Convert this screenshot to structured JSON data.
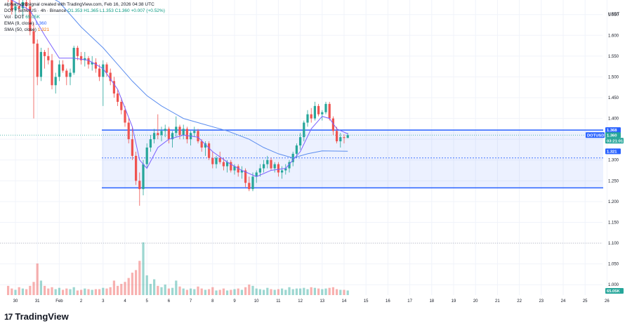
{
  "header": {
    "author_line": "alphacryptosignal created with TradingView.com, Feb 16, 2026 04:38 UTC",
    "symbol": "DOT / TetherUS · 4h · Binance",
    "ohlc": "O1.353  H1.365  L1.353  C1.360  +0.007 (+0.52%)",
    "vol_label": "Vol · DOT",
    "vol_value": "65.05K",
    "ema_label": "EMA (9, close)",
    "ema_value": "1.360",
    "sma_label": "SMA (50, close)",
    "sma_value": "1.321"
  },
  "brand": {
    "logo_text": "17",
    "name": "TradingView"
  },
  "price_axis": {
    "currency": "USDT",
    "ticks": [
      "1.650",
      "1.600",
      "1.550",
      "1.500",
      "1.450",
      "1.400",
      "1.350",
      "1.300",
      "1.250",
      "1.200",
      "1.150",
      "1.100",
      "1.050",
      "1.000"
    ]
  },
  "price_tags": {
    "symbol_tag": "DOTUSDT",
    "high_tag": "1.368",
    "last_price": "1.360",
    "countdown": "03:21:01",
    "sma_tag": "1.321",
    "volume_tag": "65.05K"
  },
  "colors": {
    "up": "#26a69a",
    "down": "#ef5350",
    "ema": "#7b61ff",
    "sma": "#5b8def",
    "box": "#2962ff"
  },
  "chart_data": {
    "type": "candlestick",
    "x_tick_labels": [
      "30",
      "31",
      "Feb",
      "2",
      "3",
      "4",
      "5",
      "6",
      "7",
      "8",
      "9",
      "10",
      "11",
      "12",
      "13",
      "14",
      "15",
      "16",
      "17",
      "18",
      "19",
      "20",
      "21",
      "22",
      "23",
      "24",
      "25",
      "26"
    ],
    "x_tick_dates": [
      "2026-01-30",
      "2026-01-31",
      "2026-02-01",
      "2026-02-02",
      "2026-02-03",
      "2026-02-04",
      "2026-02-05",
      "2026-02-06",
      "2026-02-07",
      "2026-02-08",
      "2026-02-09",
      "2026-02-10",
      "2026-02-11",
      "2026-02-12",
      "2026-02-13",
      "2026-02-14",
      "2026-02-15",
      "2026-02-16",
      "2026-02-17",
      "2026-02-18",
      "2026-02-19",
      "2026-02-20",
      "2026-02-21",
      "2026-02-22",
      "2026-02-23",
      "2026-02-24",
      "2026-02-25",
      "2026-02-26"
    ],
    "ylim": [
      0.975,
      1.685
    ],
    "candle_interval": "4h",
    "first_candle_time": "2026-01-29 16:00",
    "candles": [
      [
        1.7,
        1.72,
        1.68,
        1.69
      ],
      [
        1.69,
        1.7,
        1.65,
        1.66
      ],
      [
        1.66,
        1.68,
        1.64,
        1.67
      ],
      [
        1.67,
        1.69,
        1.655,
        1.665
      ],
      [
        1.665,
        1.69,
        1.64,
        1.68
      ],
      [
        1.68,
        1.7,
        1.66,
        1.67
      ],
      [
        1.67,
        1.69,
        1.6,
        1.61
      ],
      [
        1.61,
        1.63,
        1.4,
        1.58
      ],
      [
        1.58,
        1.59,
        1.48,
        1.5
      ],
      [
        1.5,
        1.57,
        1.49,
        1.56
      ],
      [
        1.56,
        1.565,
        1.52,
        1.55
      ],
      [
        1.55,
        1.57,
        1.53,
        1.54
      ],
      [
        1.54,
        1.555,
        1.47,
        1.48
      ],
      [
        1.48,
        1.51,
        1.46,
        1.5
      ],
      [
        1.5,
        1.54,
        1.49,
        1.53
      ],
      [
        1.53,
        1.54,
        1.51,
        1.515
      ],
      [
        1.515,
        1.52,
        1.48,
        1.5
      ],
      [
        1.5,
        1.52,
        1.48,
        1.51
      ],
      [
        1.51,
        1.575,
        1.505,
        1.57
      ],
      [
        1.57,
        1.575,
        1.54,
        1.55
      ],
      [
        1.55,
        1.56,
        1.53,
        1.54
      ],
      [
        1.54,
        1.56,
        1.525,
        1.545
      ],
      [
        1.545,
        1.55,
        1.52,
        1.53
      ],
      [
        1.53,
        1.55,
        1.515,
        1.535
      ],
      [
        1.535,
        1.545,
        1.51,
        1.52
      ],
      [
        1.52,
        1.53,
        1.49,
        1.5
      ],
      [
        1.5,
        1.54,
        1.43,
        1.53
      ],
      [
        1.53,
        1.535,
        1.5,
        1.51
      ],
      [
        1.51,
        1.52,
        1.48,
        1.49
      ],
      [
        1.49,
        1.5,
        1.45,
        1.46
      ],
      [
        1.46,
        1.47,
        1.43,
        1.44
      ],
      [
        1.44,
        1.45,
        1.41,
        1.42
      ],
      [
        1.42,
        1.43,
        1.38,
        1.39
      ],
      [
        1.39,
        1.4,
        1.34,
        1.35
      ],
      [
        1.35,
        1.38,
        1.3,
        1.31
      ],
      [
        1.31,
        1.32,
        1.24,
        1.25
      ],
      [
        1.25,
        1.27,
        1.19,
        1.23
      ],
      [
        1.23,
        1.3,
        1.215,
        1.29
      ],
      [
        1.29,
        1.34,
        1.28,
        1.33
      ],
      [
        1.33,
        1.36,
        1.32,
        1.35
      ],
      [
        1.35,
        1.375,
        1.34,
        1.365
      ],
      [
        1.365,
        1.41,
        1.35,
        1.36
      ],
      [
        1.36,
        1.38,
        1.345,
        1.37
      ],
      [
        1.37,
        1.385,
        1.355,
        1.375
      ],
      [
        1.375,
        1.38,
        1.34,
        1.35
      ],
      [
        1.35,
        1.37,
        1.33,
        1.365
      ],
      [
        1.365,
        1.405,
        1.355,
        1.38
      ],
      [
        1.38,
        1.385,
        1.35,
        1.36
      ],
      [
        1.36,
        1.385,
        1.35,
        1.375
      ],
      [
        1.375,
        1.38,
        1.34,
        1.35
      ],
      [
        1.35,
        1.37,
        1.335,
        1.365
      ],
      [
        1.365,
        1.38,
        1.355,
        1.37
      ],
      [
        1.37,
        1.375,
        1.34,
        1.345
      ],
      [
        1.345,
        1.35,
        1.32,
        1.33
      ],
      [
        1.33,
        1.345,
        1.31,
        1.34
      ],
      [
        1.34,
        1.345,
        1.3,
        1.305
      ],
      [
        1.305,
        1.32,
        1.28,
        1.29
      ],
      [
        1.29,
        1.31,
        1.28,
        1.305
      ],
      [
        1.305,
        1.32,
        1.29,
        1.295
      ],
      [
        1.295,
        1.305,
        1.275,
        1.285
      ],
      [
        1.285,
        1.3,
        1.27,
        1.295
      ],
      [
        1.295,
        1.3,
        1.27,
        1.275
      ],
      [
        1.275,
        1.29,
        1.265,
        1.285
      ],
      [
        1.285,
        1.29,
        1.26,
        1.27
      ],
      [
        1.27,
        1.285,
        1.255,
        1.275
      ],
      [
        1.275,
        1.28,
        1.235,
        1.245
      ],
      [
        1.245,
        1.26,
        1.225,
        1.23
      ],
      [
        1.23,
        1.27,
        1.225,
        1.26
      ],
      [
        1.26,
        1.275,
        1.245,
        1.27
      ],
      [
        1.27,
        1.29,
        1.26,
        1.28
      ],
      [
        1.28,
        1.3,
        1.27,
        1.29
      ],
      [
        1.29,
        1.31,
        1.28,
        1.3
      ],
      [
        1.3,
        1.305,
        1.275,
        1.28
      ],
      [
        1.28,
        1.295,
        1.27,
        1.29
      ],
      [
        1.29,
        1.295,
        1.26,
        1.27
      ],
      [
        1.27,
        1.285,
        1.255,
        1.275
      ],
      [
        1.275,
        1.29,
        1.265,
        1.28
      ],
      [
        1.28,
        1.3,
        1.27,
        1.295
      ],
      [
        1.295,
        1.32,
        1.285,
        1.315
      ],
      [
        1.315,
        1.34,
        1.305,
        1.335
      ],
      [
        1.335,
        1.365,
        1.325,
        1.355
      ],
      [
        1.355,
        1.395,
        1.345,
        1.39
      ],
      [
        1.39,
        1.42,
        1.38,
        1.41
      ],
      [
        1.41,
        1.425,
        1.39,
        1.4
      ],
      [
        1.4,
        1.44,
        1.395,
        1.43
      ],
      [
        1.43,
        1.435,
        1.405,
        1.41
      ],
      [
        1.41,
        1.42,
        1.395,
        1.415
      ],
      [
        1.415,
        1.44,
        1.41,
        1.435
      ],
      [
        1.435,
        1.44,
        1.395,
        1.4
      ],
      [
        1.4,
        1.405,
        1.36,
        1.37
      ],
      [
        1.37,
        1.38,
        1.34,
        1.345
      ],
      [
        1.345,
        1.365,
        1.33,
        1.355
      ],
      [
        1.355,
        1.362,
        1.34,
        1.353
      ],
      [
        1.353,
        1.365,
        1.353,
        1.36
      ]
    ],
    "volumes": [
      14,
      10,
      8,
      12,
      10,
      9,
      14,
      20,
      48,
      22,
      14,
      10,
      12,
      9,
      11,
      8,
      10,
      9,
      12,
      7,
      8,
      10,
      9,
      8,
      9,
      9,
      11,
      10,
      12,
      22,
      14,
      17,
      20,
      26,
      34,
      38,
      52,
      80,
      30,
      17,
      24,
      14,
      12,
      16,
      10,
      11,
      22,
      13,
      10,
      8,
      10,
      9,
      13,
      10,
      8,
      9,
      12,
      7,
      8,
      10,
      7,
      8,
      9,
      10,
      8,
      12,
      16,
      14,
      10,
      9,
      8,
      11,
      9,
      8,
      9,
      10,
      8,
      12,
      9,
      10,
      10,
      11,
      9,
      12,
      11,
      10,
      9,
      10,
      11,
      12,
      9,
      8,
      8,
      7
    ],
    "ema_9": [
      [
        0,
        1.69
      ],
      [
        6,
        1.66
      ],
      [
        10,
        1.6
      ],
      [
        14,
        1.545
      ],
      [
        18,
        1.545
      ],
      [
        22,
        1.54
      ],
      [
        26,
        1.52
      ],
      [
        30,
        1.47
      ],
      [
        34,
        1.38
      ],
      [
        36,
        1.3
      ],
      [
        38,
        1.28
      ],
      [
        41,
        1.33
      ],
      [
        44,
        1.35
      ],
      [
        48,
        1.36
      ],
      [
        52,
        1.355
      ],
      [
        56,
        1.32
      ],
      [
        60,
        1.295
      ],
      [
        64,
        1.275
      ],
      [
        68,
        1.26
      ],
      [
        72,
        1.275
      ],
      [
        76,
        1.28
      ],
      [
        80,
        1.32
      ],
      [
        83,
        1.375
      ],
      [
        86,
        1.405
      ],
      [
        88,
        1.4
      ],
      [
        90,
        1.375
      ],
      [
        93,
        1.363
      ]
    ],
    "sma_50": [
      [
        0,
        1.76
      ],
      [
        8,
        1.71
      ],
      [
        14,
        1.68
      ],
      [
        20,
        1.62
      ],
      [
        26,
        1.57
      ],
      [
        30,
        1.53
      ],
      [
        34,
        1.49
      ],
      [
        38,
        1.455
      ],
      [
        42,
        1.43
      ],
      [
        48,
        1.4
      ],
      [
        54,
        1.385
      ],
      [
        60,
        1.37
      ],
      [
        66,
        1.35
      ],
      [
        70,
        1.33
      ],
      [
        74,
        1.315
      ],
      [
        78,
        1.305
      ],
      [
        82,
        1.315
      ],
      [
        86,
        1.322
      ],
      [
        93,
        1.321
      ]
    ],
    "range_box": {
      "top": 1.372,
      "bottom": 1.233,
      "mid": 1.305
    },
    "last_price_line": 1.36,
    "y_ticks": [
      1.65,
      1.6,
      1.55,
      1.5,
      1.45,
      1.4,
      1.35,
      1.3,
      1.25,
      1.2,
      1.15,
      1.1,
      1.05,
      1.0
    ]
  }
}
